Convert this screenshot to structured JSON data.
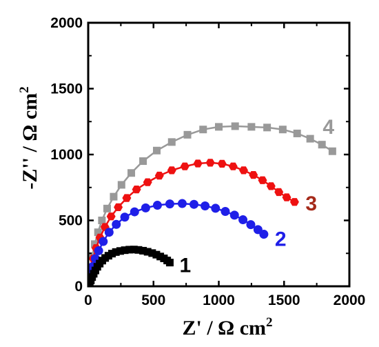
{
  "chart_data": {
    "type": "scatter",
    "xlabel": "Z' / Ω cm2",
    "ylabel": "-Z'' / Ω cm2",
    "xlim": [
      0,
      2000
    ],
    "ylim": [
      0,
      2000
    ],
    "x_ticks": [
      "0",
      "500",
      "1000",
      "1500",
      "2000"
    ],
    "y_ticks": [
      "0",
      "500",
      "1000",
      "1500",
      "2000"
    ],
    "grid": false,
    "legend": "none",
    "series": [
      {
        "name": "1",
        "color": "#000000",
        "marker": "square",
        "points": [
          [
            2,
            2
          ],
          [
            6,
            10
          ],
          [
            12,
            25
          ],
          [
            20,
            45
          ],
          [
            30,
            70
          ],
          [
            42,
            95
          ],
          [
            55,
            120
          ],
          [
            70,
            148
          ],
          [
            88,
            172
          ],
          [
            108,
            195
          ],
          [
            130,
            215
          ],
          [
            155,
            232
          ],
          [
            182,
            248
          ],
          [
            212,
            260
          ],
          [
            245,
            268
          ],
          [
            280,
            274
          ],
          [
            315,
            278
          ],
          [
            350,
            279
          ],
          [
            385,
            276
          ],
          [
            420,
            270
          ],
          [
            455,
            262
          ],
          [
            490,
            252
          ],
          [
            522,
            240
          ],
          [
            552,
            226
          ],
          [
            580,
            212
          ],
          [
            605,
            196
          ],
          [
            625,
            180
          ]
        ]
      },
      {
        "name": "2",
        "color": "#1f1fe8",
        "marker": "circle",
        "points": [
          [
            2,
            3
          ],
          [
            5,
            25
          ],
          [
            12,
            60
          ],
          [
            22,
            100
          ],
          [
            35,
            150
          ],
          [
            55,
            210
          ],
          [
            80,
            270
          ],
          [
            115,
            340
          ],
          [
            160,
            410
          ],
          [
            215,
            470
          ],
          [
            280,
            525
          ],
          [
            355,
            565
          ],
          [
            440,
            595
          ],
          [
            530,
            615
          ],
          [
            625,
            625
          ],
          [
            720,
            628
          ],
          [
            810,
            622
          ],
          [
            895,
            610
          ],
          [
            975,
            592
          ],
          [
            1050,
            568
          ],
          [
            1120,
            540
          ],
          [
            1185,
            505
          ],
          [
            1245,
            468
          ],
          [
            1300,
            430
          ],
          [
            1345,
            395
          ]
        ]
      },
      {
        "name": "3",
        "color": "#ee1111",
        "marker": "hexagon",
        "points": [
          [
            2,
            3
          ],
          [
            5,
            30
          ],
          [
            12,
            80
          ],
          [
            22,
            140
          ],
          [
            38,
            210
          ],
          [
            60,
            290
          ],
          [
            90,
            370
          ],
          [
            128,
            450
          ],
          [
            175,
            530
          ],
          [
            230,
            600
          ],
          [
            295,
            670
          ],
          [
            370,
            735
          ],
          [
            455,
            790
          ],
          [
            545,
            840
          ],
          [
            640,
            880
          ],
          [
            740,
            910
          ],
          [
            840,
            932
          ],
          [
            935,
            938
          ],
          [
            1025,
            930
          ],
          [
            1110,
            910
          ],
          [
            1190,
            880
          ],
          [
            1265,
            845
          ],
          [
            1335,
            805
          ],
          [
            1400,
            760
          ],
          [
            1460,
            715
          ],
          [
            1520,
            675
          ],
          [
            1580,
            640
          ]
        ]
      },
      {
        "name": "4",
        "color": "#999999",
        "marker": "square",
        "points": [
          [
            2,
            5
          ],
          [
            8,
            60
          ],
          [
            18,
            140
          ],
          [
            32,
            230
          ],
          [
            50,
            320
          ],
          [
            75,
            410
          ],
          [
            105,
            500
          ],
          [
            145,
            590
          ],
          [
            195,
            680
          ],
          [
            255,
            770
          ],
          [
            330,
            860
          ],
          [
            420,
            950
          ],
          [
            525,
            1030
          ],
          [
            640,
            1095
          ],
          [
            760,
            1150
          ],
          [
            880,
            1190
          ],
          [
            1000,
            1210
          ],
          [
            1125,
            1215
          ],
          [
            1250,
            1210
          ],
          [
            1370,
            1205
          ],
          [
            1490,
            1190
          ],
          [
            1600,
            1160
          ],
          [
            1700,
            1120
          ],
          [
            1790,
            1075
          ],
          [
            1870,
            1025
          ]
        ]
      }
    ],
    "colors": {
      "axis": "#000000",
      "label_1": "#000000",
      "label_2": "#1f1fe8",
      "label_3": "#a52a1a",
      "label_4": "#999999"
    }
  }
}
